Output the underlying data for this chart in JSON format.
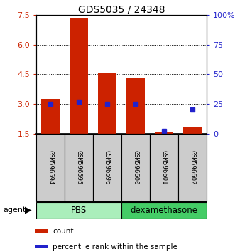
{
  "title": "GDS5035 / 24348",
  "samples": [
    "GSM596594",
    "GSM596595",
    "GSM596596",
    "GSM596600",
    "GSM596601",
    "GSM596602"
  ],
  "count_values": [
    3.25,
    7.35,
    4.6,
    4.3,
    1.6,
    1.8
  ],
  "count_base": 1.5,
  "percentile_values": [
    25,
    27,
    25,
    25,
    2,
    20
  ],
  "left_ylim": [
    1.5,
    7.5
  ],
  "right_ylim": [
    0,
    100
  ],
  "left_yticks": [
    1.5,
    3.0,
    4.5,
    6.0,
    7.5
  ],
  "right_yticks": [
    0,
    25,
    50,
    75,
    100
  ],
  "right_yticklabels": [
    "0",
    "25",
    "50",
    "75",
    "100%"
  ],
  "bar_color": "#CC2200",
  "percentile_color": "#2222CC",
  "pbs_color": "#AAEEBB",
  "dex_color": "#44CC66",
  "sample_box_color": "#CCCCCC",
  "legend_count_label": "count",
  "legend_percentile_label": "percentile rank within the sample",
  "agent_label": "agent",
  "agent_arrow": "▶",
  "pbs_label": "PBS",
  "dex_label": "dexamethasone",
  "pbs_indices": [
    0,
    1,
    2
  ],
  "dex_indices": [
    3,
    4,
    5
  ]
}
